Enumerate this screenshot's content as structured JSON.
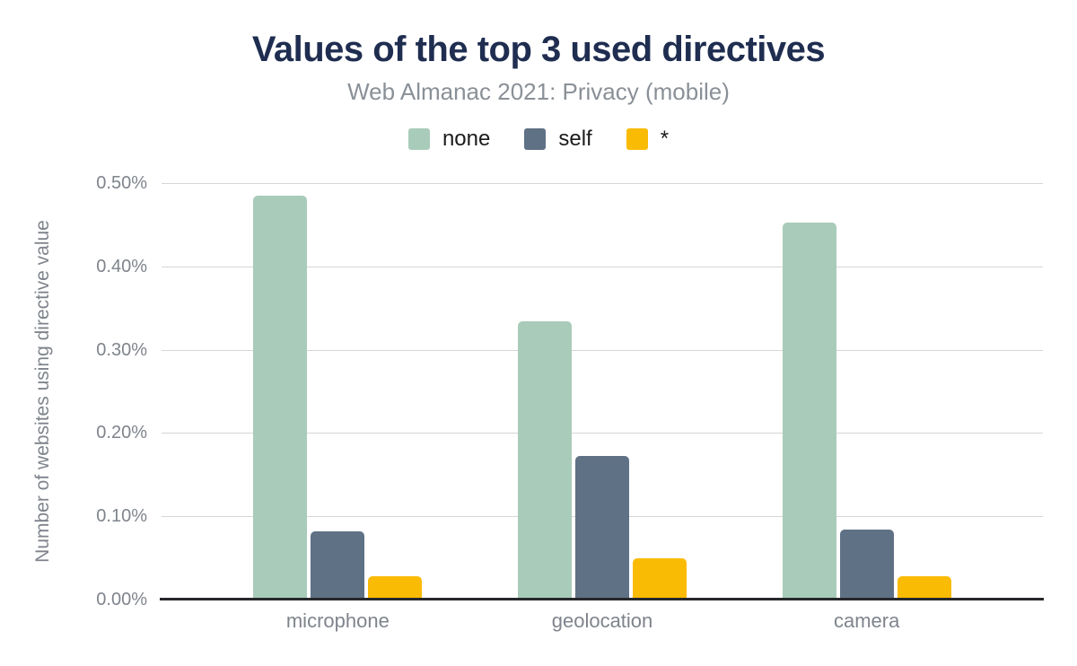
{
  "header": {
    "title": "Values of the top 3 used directives",
    "subtitle": "Web Almanac 2021: Privacy (mobile)"
  },
  "colors": {
    "title": "#1F2D50",
    "subtitle": "#8A9097",
    "axis_text": "#7F848C",
    "gridline": "#D6D6D6",
    "axis_line": "#26282B",
    "series_none": "#A9CBBA",
    "series_self": "#5F7185",
    "series_star": "#FABB05"
  },
  "chart_data": {
    "type": "bar",
    "title": "Values of the top 3 used directives",
    "subtitle": "Web Almanac 2021: Privacy (mobile)",
    "categories": [
      "microphone",
      "geolocation",
      "camera"
    ],
    "series": [
      {
        "name": "none",
        "color": "#A9CBBA",
        "values": [
          0.485,
          0.334,
          0.453
        ]
      },
      {
        "name": "self",
        "color": "#5F7185",
        "values": [
          0.082,
          0.172,
          0.084
        ]
      },
      {
        "name": "*",
        "color": "#FABB05",
        "values": [
          0.028,
          0.05,
          0.028
        ]
      }
    ],
    "unit": "%",
    "xlabel": "",
    "ylabel": "Number of websites using directive value",
    "ylim": [
      0,
      0.5
    ],
    "yticks": [
      "0.50%",
      "0.40%",
      "0.30%",
      "0.20%",
      "0.10%",
      "0.00%"
    ],
    "ytick_values": [
      0.5,
      0.4,
      0.3,
      0.2,
      0.1,
      0.0
    ],
    "grid": true,
    "legend_position": "top-center"
  }
}
